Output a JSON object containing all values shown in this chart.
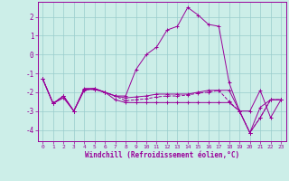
{
  "xlabel": "Windchill (Refroidissement éolien,°C)",
  "bg_color": "#cceee8",
  "line_color": "#990099",
  "grid_color": "#99cccc",
  "xlim": [
    -0.5,
    23.5
  ],
  "ylim": [
    -4.6,
    2.8
  ],
  "xticks": [
    0,
    1,
    2,
    3,
    4,
    5,
    6,
    7,
    8,
    9,
    10,
    11,
    12,
    13,
    14,
    15,
    16,
    17,
    18,
    19,
    20,
    21,
    22,
    23
  ],
  "yticks": [
    -4,
    -3,
    -2,
    -1,
    0,
    1,
    2
  ],
  "lines": [
    {
      "y": [
        -1.3,
        -2.6,
        -2.3,
        -3.0,
        -1.9,
        -1.8,
        -2.0,
        -2.2,
        -2.2,
        -0.8,
        0.0,
        0.4,
        1.3,
        1.5,
        2.5,
        2.1,
        1.6,
        1.5,
        -1.5,
        -3.0,
        -3.0,
        -1.9,
        -3.35,
        -2.4
      ],
      "style": "-",
      "marker": "+"
    },
    {
      "y": [
        -1.3,
        -2.6,
        -2.2,
        -3.0,
        -1.85,
        -1.85,
        -2.0,
        -2.2,
        -2.45,
        -2.4,
        -2.35,
        -2.25,
        -2.2,
        -2.2,
        -2.15,
        -2.05,
        -2.0,
        -1.9,
        -2.5,
        -3.0,
        -4.15,
        -3.35,
        -2.4,
        -2.4
      ],
      "style": "--",
      "marker": "+"
    },
    {
      "y": [
        -1.3,
        -2.6,
        -2.2,
        -3.0,
        -1.85,
        -1.85,
        -2.0,
        -2.4,
        -2.55,
        -2.55,
        -2.55,
        -2.55,
        -2.55,
        -2.55,
        -2.55,
        -2.55,
        -2.55,
        -2.55,
        -2.55,
        -3.0,
        -4.15,
        -3.35,
        -2.4,
        -2.4
      ],
      "style": "-",
      "marker": "+"
    },
    {
      "y": [
        -1.3,
        -2.6,
        -2.2,
        -3.0,
        -1.8,
        -1.8,
        -2.0,
        -2.2,
        -2.3,
        -2.25,
        -2.2,
        -2.1,
        -2.1,
        -2.1,
        -2.1,
        -2.0,
        -1.9,
        -1.9,
        -1.9,
        -3.0,
        -4.15,
        -2.8,
        -2.4,
        -2.4
      ],
      "style": "-",
      "marker": "+"
    }
  ]
}
